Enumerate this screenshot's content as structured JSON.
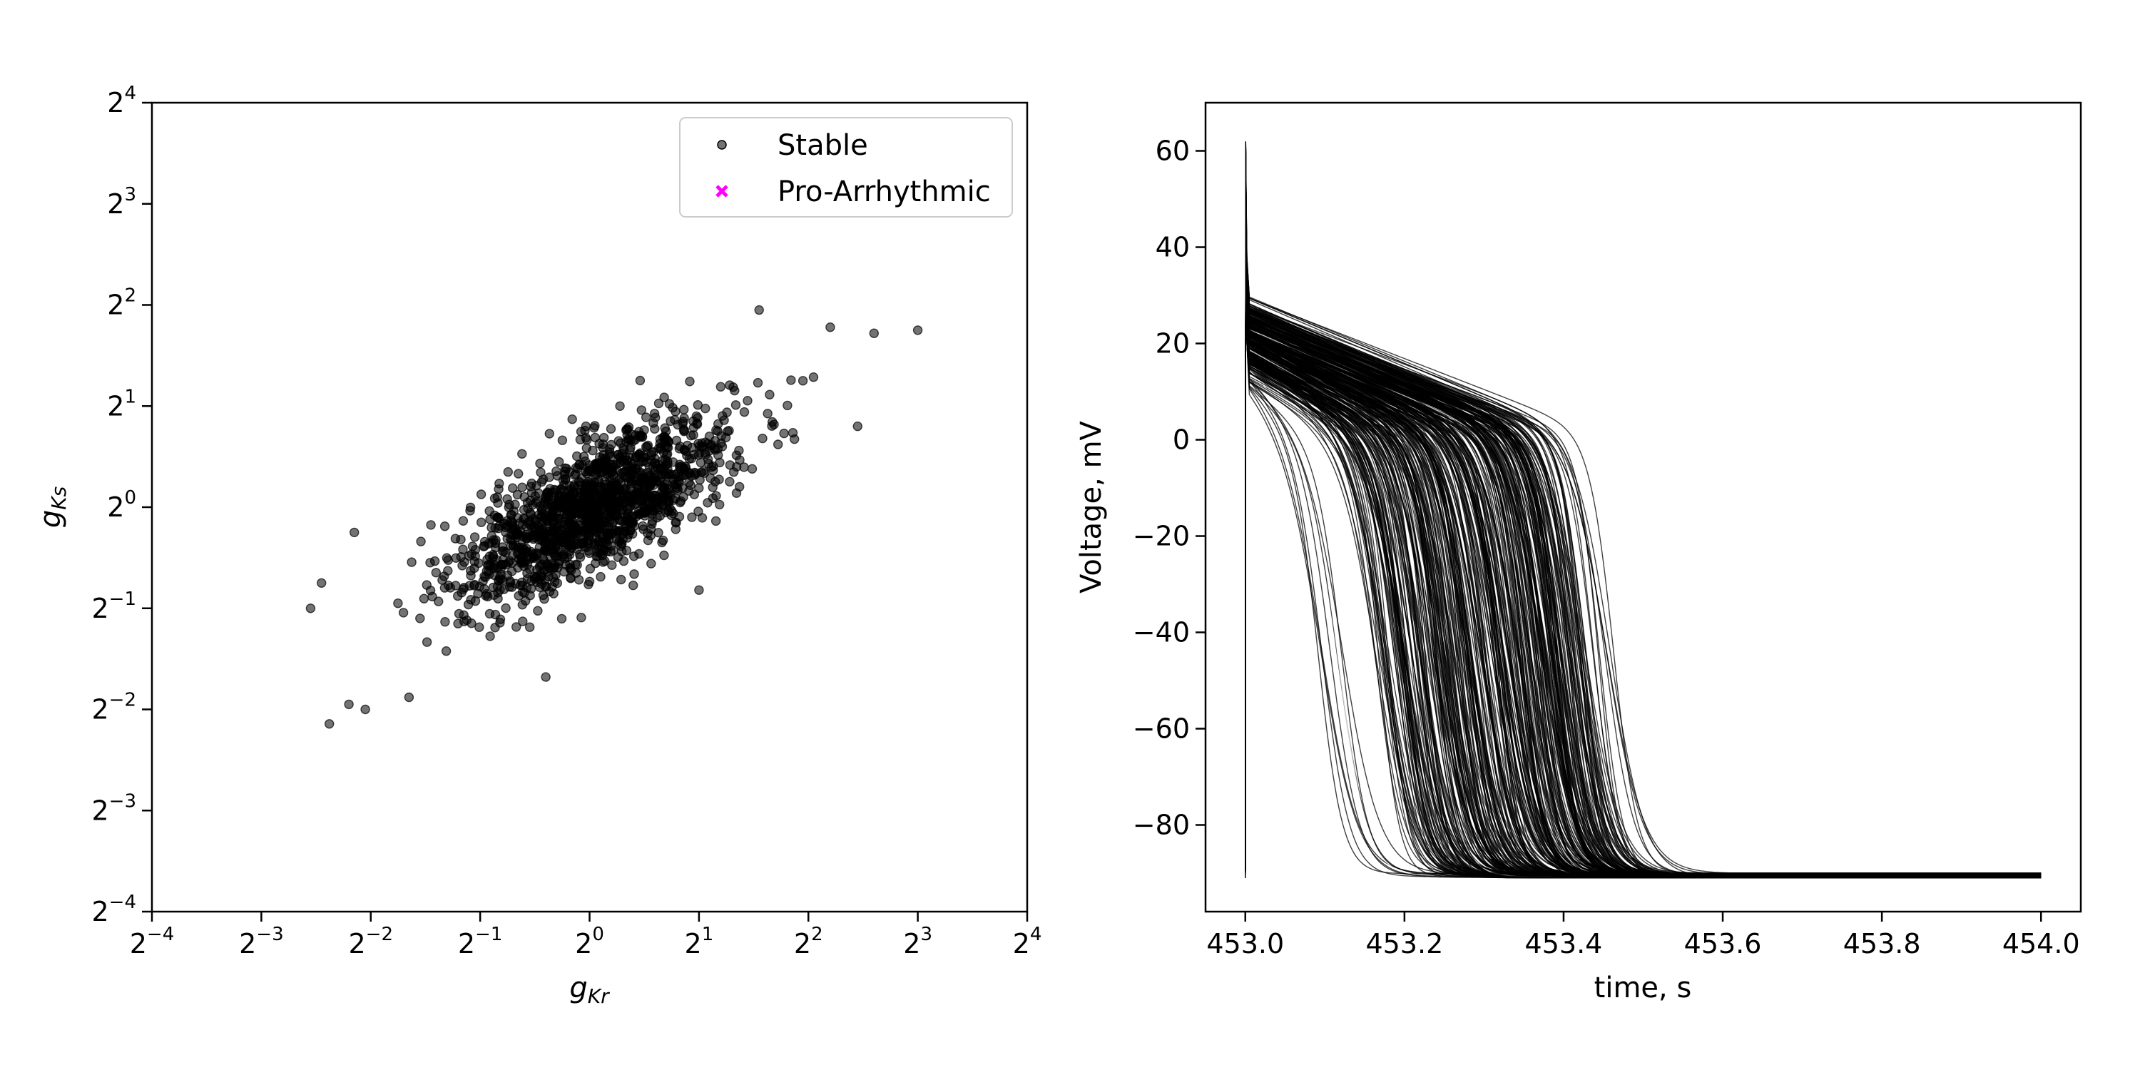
{
  "chart_data": [
    {
      "type": "scatter",
      "x_scale": "log2",
      "y_scale": "log2",
      "xlim": [
        0.0625,
        16
      ],
      "ylim": [
        0.0625,
        16
      ],
      "x_ticks": [
        {
          "base": "2",
          "exp": "−4"
        },
        {
          "base": "2",
          "exp": "−3"
        },
        {
          "base": "2",
          "exp": "−2"
        },
        {
          "base": "2",
          "exp": "−1"
        },
        {
          "base": "2",
          "exp": "0"
        },
        {
          "base": "2",
          "exp": "1"
        },
        {
          "base": "2",
          "exp": "2"
        },
        {
          "base": "2",
          "exp": "3"
        },
        {
          "base": "2",
          "exp": "4"
        }
      ],
      "y_ticks": [
        {
          "base": "2",
          "exp": "−4"
        },
        {
          "base": "2",
          "exp": "−3"
        },
        {
          "base": "2",
          "exp": "−2"
        },
        {
          "base": "2",
          "exp": "−1"
        },
        {
          "base": "2",
          "exp": "0"
        },
        {
          "base": "2",
          "exp": "1"
        },
        {
          "base": "2",
          "exp": "2"
        },
        {
          "base": "2",
          "exp": "3"
        },
        {
          "base": "2",
          "exp": "4"
        }
      ],
      "xlabel": {
        "main": "g",
        "sub": "Kr"
      },
      "ylabel": {
        "main": "g",
        "sub": "Ks"
      },
      "grid": false,
      "legend": {
        "position": "upper-right",
        "entries": [
          {
            "label": "Stable",
            "marker": "circle",
            "color": "#000000"
          },
          {
            "label": "Pro-Arrhythmic",
            "marker": "x",
            "color": "#ff00ff"
          }
        ]
      },
      "series": [
        {
          "name": "Stable",
          "marker": "circle",
          "color": "#000000",
          "opacity": 0.55,
          "log2_distribution": {
            "n": 1500,
            "mean_log2_x": 0.05,
            "mean_log2_y": 0.0,
            "sd_log2_x": 0.62,
            "sd_log2_y": 0.45,
            "correlation": 0.72
          },
          "outliers_log2": [
            [
              3.0,
              1.75
            ],
            [
              2.6,
              1.72
            ],
            [
              2.2,
              1.78
            ],
            [
              1.55,
              1.95
            ],
            [
              1.95,
              1.25
            ],
            [
              -2.55,
              -1.0
            ],
            [
              -2.45,
              -0.75
            ],
            [
              -2.2,
              -1.95
            ],
            [
              -2.05,
              -2.0
            ],
            [
              -1.65,
              -1.88
            ],
            [
              -0.4,
              -1.68
            ],
            [
              -2.15,
              -0.25
            ],
            [
              1.0,
              -0.82
            ],
            [
              2.45,
              0.8
            ]
          ]
        },
        {
          "name": "Pro-Arrhythmic",
          "marker": "x",
          "color": "#ff00ff",
          "points": []
        }
      ]
    },
    {
      "type": "line",
      "xlim": [
        452.95,
        454.05
      ],
      "ylim": [
        -98,
        70
      ],
      "x_ticks": [
        "453.0",
        "453.2",
        "453.4",
        "453.6",
        "453.8",
        "454.0"
      ],
      "x_tick_values": [
        453.0,
        453.2,
        453.4,
        453.6,
        453.8,
        454.0
      ],
      "y_ticks": [
        "60",
        "40",
        "20",
        "0",
        "−20",
        "−40",
        "−60",
        "−80"
      ],
      "y_tick_values": [
        60,
        40,
        20,
        0,
        -20,
        -40,
        -60,
        -80
      ],
      "xlabel": "time, s",
      "ylabel": "Voltage, mV",
      "grid": false,
      "series_description_count": 1500,
      "line_color": "#000000",
      "action_potential": {
        "t_start": 453.0,
        "t_end": 454.0,
        "rest_mV": -90.5,
        "peak_mV": 62,
        "plateau_mV_range": [
          12,
          31
        ],
        "repolarization_time_range_s": [
          453.09,
          453.48
        ]
      }
    }
  ]
}
